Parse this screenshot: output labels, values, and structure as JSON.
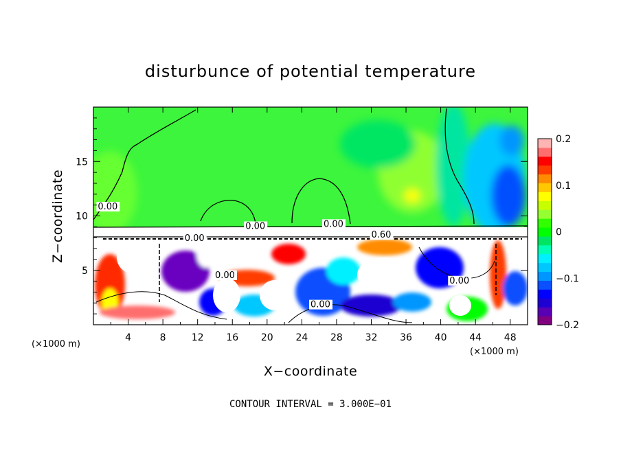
{
  "chart_data": {
    "type": "heatmap",
    "title": "disturbunce of potential temperature",
    "xlabel": "X−coordinate",
    "ylabel": "Z−coordinate",
    "x_unit_label": "(×1000 m)",
    "x_unit_label_right": "(×1000 m)",
    "y_unit_label": "",
    "xlim": [
      0,
      50
    ],
    "ylim": [
      0,
      20
    ],
    "xticks": [
      "4",
      "8",
      "12",
      "16",
      "20",
      "24",
      "28",
      "32",
      "36",
      "40",
      "44",
      "48"
    ],
    "xtick_values": [
      4,
      8,
      12,
      16,
      20,
      24,
      28,
      32,
      36,
      40,
      44,
      48
    ],
    "yticks": [
      "5",
      "10",
      "15"
    ],
    "ytick_values": [
      5,
      10,
      15
    ],
    "colorbar": {
      "min": -0.2,
      "max": 0.2,
      "tick_labels": [
        "0.2",
        "0.1",
        "0",
        "−0.1",
        "−0.2"
      ],
      "tick_values": [
        0.2,
        0.1,
        0,
        -0.1,
        -0.2
      ],
      "colors": [
        "#800080",
        "#5a00b4",
        "#1e00d2",
        "#0000ff",
        "#0a50ff",
        "#0096ff",
        "#00c8ff",
        "#00f0ff",
        "#00ffb4",
        "#00e664",
        "#00ff00",
        "#32ff00",
        "#96ff32",
        "#c8ff00",
        "#ffff00",
        "#ffc800",
        "#ff8c00",
        "#ff3c00",
        "#ff0000",
        "#ff6e6e",
        "#ffb4b4"
      ]
    },
    "contour_labels": [
      {
        "text": "0.00",
        "x": 0.5,
        "z": 10.6
      },
      {
        "text": "0.00",
        "x": 17.5,
        "z": 8.8
      },
      {
        "text": "0.00",
        "x": 26.5,
        "z": 9.0
      },
      {
        "text": "0.00",
        "x": 10.5,
        "z": 7.7
      },
      {
        "text": "0.00",
        "x": 14.0,
        "z": 4.3
      },
      {
        "text": "0.00",
        "x": 25.0,
        "z": 1.6
      },
      {
        "text": "0.00",
        "x": 41.0,
        "z": 3.8
      },
      {
        "text": "0.60",
        "x": 32.0,
        "z": 8.0
      }
    ],
    "annotation": "CONTOUR INTERVAL = 3.000E−01"
  }
}
